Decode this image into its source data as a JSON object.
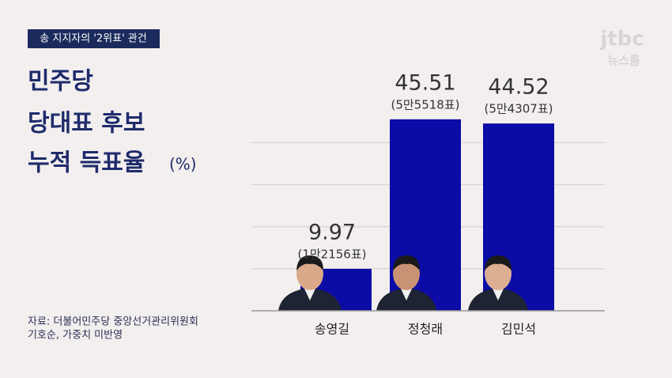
{
  "tag": "송 지지자의 '2위표' 관건",
  "logo": {
    "brand": "jtbc",
    "program": "뉴스룸"
  },
  "source": [
    "자료: 더불어민주당 중앙선거관리위원회",
    "기호순, 가중치 미반영"
  ],
  "chart_data": {
    "type": "bar",
    "title_lines": [
      "민주당",
      "당대표 후보",
      "누적 득표율"
    ],
    "title_unit": "(%)",
    "categories": [
      "송영길",
      "정청래",
      "김민석"
    ],
    "values": [
      9.97,
      45.51,
      44.52
    ],
    "vote_labels": [
      "(1만2156표)",
      "(5만5518표)",
      "(5만4307표)"
    ],
    "color": "#0b0ba6",
    "ylim": [
      0,
      50
    ],
    "yticks": [
      10,
      20,
      30,
      40
    ],
    "grid": true
  }
}
